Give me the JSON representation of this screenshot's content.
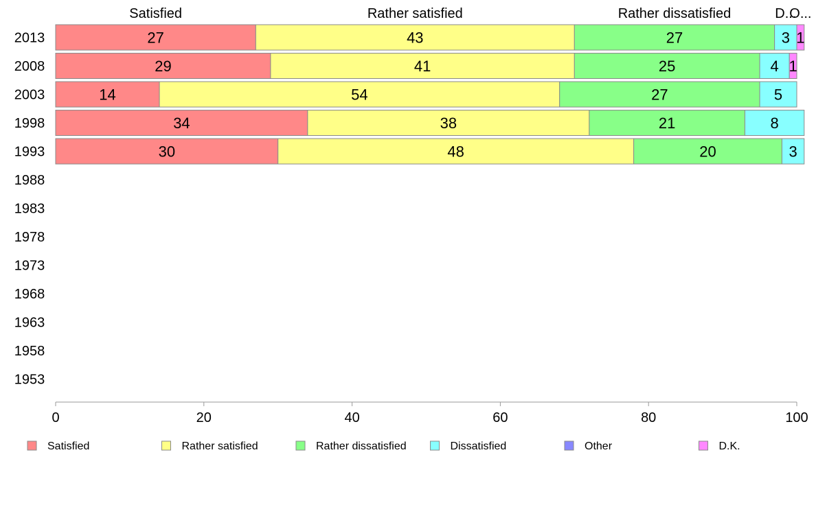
{
  "chart_data": {
    "type": "bar",
    "orientation": "horizontal",
    "stacked": true,
    "categories": [
      "2013",
      "2008",
      "2003",
      "1998",
      "1993",
      "1988",
      "1983",
      "1978",
      "1973",
      "1968",
      "1963",
      "1958",
      "1953"
    ],
    "xlim": [
      0,
      100
    ],
    "xticks": [
      0,
      20,
      40,
      60,
      80,
      100
    ],
    "series": [
      {
        "name": "Satisfied",
        "color": "#ff8888",
        "values": [
          27,
          29,
          14,
          34,
          30,
          null,
          null,
          null,
          null,
          null,
          null,
          null,
          null
        ]
      },
      {
        "name": "Rather satisfied",
        "color": "#ffff88",
        "values": [
          43,
          41,
          54,
          38,
          48,
          null,
          null,
          null,
          null,
          null,
          null,
          null,
          null
        ]
      },
      {
        "name": "Rather dissatisfied",
        "color": "#88ff88",
        "values": [
          27,
          25,
          27,
          21,
          20,
          null,
          null,
          null,
          null,
          null,
          null,
          null,
          null
        ]
      },
      {
        "name": "Dissatisfied",
        "color": "#88ffff",
        "values": [
          3,
          4,
          5,
          8,
          3,
          null,
          null,
          null,
          null,
          null,
          null,
          null,
          null
        ]
      },
      {
        "name": "Other",
        "color": "#8888ff",
        "values": [
          0,
          0,
          0,
          0,
          0,
          null,
          null,
          null,
          null,
          null,
          null,
          null,
          null
        ]
      },
      {
        "name": "D.K.",
        "color": "#ff88ff",
        "values": [
          1,
          1,
          0,
          0,
          0,
          null,
          null,
          null,
          null,
          null,
          null,
          null,
          null
        ]
      }
    ],
    "top_labels": [
      "Satisfied",
      "Rather satisfied",
      "Rather dissatisfied",
      "D...",
      "O..."
    ],
    "legend": {
      "position": "bottom",
      "entries": [
        "Satisfied",
        "Rather satisfied",
        "Rather dissatisfied",
        "Dissatisfied",
        "Other",
        "D.K."
      ]
    },
    "title": "",
    "xlabel": "",
    "ylabel": "",
    "grid": false
  }
}
